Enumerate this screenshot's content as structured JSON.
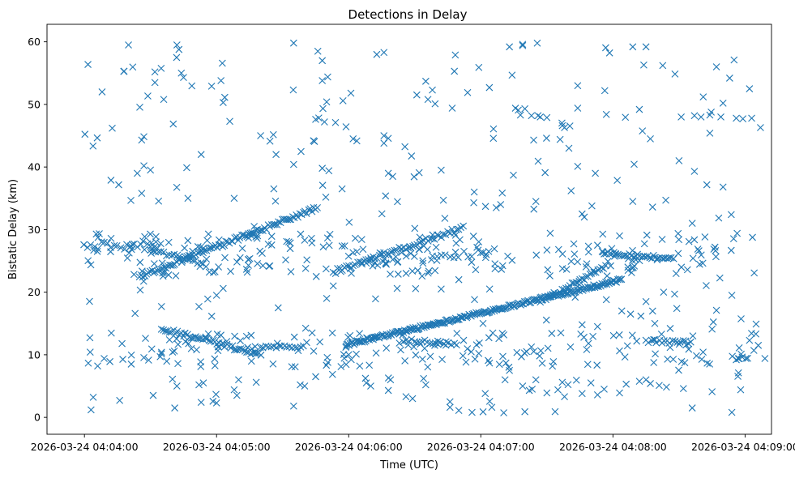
{
  "chart_data": {
    "type": "scatter",
    "title": "Detections in Delay",
    "xlabel": "Time (UTC)",
    "ylabel": "Bistatic Delay (km)",
    "x_unit": "seconds after 2026-03-24 04:04:00",
    "xlim": [
      -17,
      312
    ],
    "ylim": [
      -2.7,
      62.8
    ],
    "xticks": [
      {
        "value": 0,
        "label": "2026-03-24 04:04:00"
      },
      {
        "value": 60,
        "label": "2026-03-24 04:05:00"
      },
      {
        "value": 120,
        "label": "2026-03-24 04:06:00"
      },
      {
        "value": 180,
        "label": "2026-03-24 04:07:00"
      },
      {
        "value": 240,
        "label": "2026-03-24 04:08:00"
      },
      {
        "value": 300,
        "label": "2026-03-24 04:09:00"
      }
    ],
    "yticks": [
      0,
      10,
      20,
      30,
      40,
      50,
      60
    ],
    "grid": false,
    "marker": "x",
    "color": "#1f77b4",
    "seed": 12345,
    "tracks": [
      {
        "name": "ascending-track-low",
        "start": [
          119,
          11.6
        ],
        "end": [
          244,
          22.0
        ],
        "step": 0.55,
        "jitter": 0.25
      },
      {
        "name": "ascending-track-mid-a",
        "start": [
          25,
          22.5
        ],
        "end": [
          106,
          33.5
        ],
        "step": 0.8,
        "jitter": 0.35
      },
      {
        "name": "ascending-track-mid-b",
        "start": [
          113,
          23.2
        ],
        "end": [
          172,
          30.3
        ],
        "step": 1.0,
        "jitter": 0.35
      },
      {
        "name": "descending-track-mid",
        "start": [
          30,
          26.5
        ],
        "end": [
          55,
          24.5
        ],
        "step": 1.2,
        "jitter": 0.4
      },
      {
        "name": "descending-track-low",
        "start": [
          35,
          14.2
        ],
        "end": [
          80,
          10.0
        ],
        "step": 0.9,
        "jitter": 0.3
      },
      {
        "name": "flat-track-low-a",
        "start": [
          80,
          11.3
        ],
        "end": [
          100,
          11.3
        ],
        "step": 1.2,
        "jitter": 0.2
      },
      {
        "name": "flat-track-low-b",
        "start": [
          145,
          12.3
        ],
        "end": [
          170,
          11.8
        ],
        "step": 1.2,
        "jitter": 0.3
      },
      {
        "name": "flat-track-mid-a",
        "start": [
          120,
          25.5
        ],
        "end": [
          180,
          26.2
        ],
        "step": 2.0,
        "jitter": 1.0
      },
      {
        "name": "flat-track-mid-b",
        "start": [
          235,
          26.4
        ],
        "end": [
          268,
          25.3
        ],
        "step": 0.9,
        "jitter": 0.3
      },
      {
        "name": "flat-track-mid-c",
        "start": [
          0,
          27.5
        ],
        "end": [
          35,
          27.3
        ],
        "step": 1.5,
        "jitter": 0.6
      },
      {
        "name": "flat-track-low-c",
        "start": [
          255,
          12.2
        ],
        "end": [
          276,
          12.0
        ],
        "step": 1.2,
        "jitter": 0.25
      },
      {
        "name": "ascending-track-right",
        "start": [
          207,
          18.5
        ],
        "end": [
          237,
          24.2
        ],
        "step": 0.9,
        "jitter": 0.3
      }
    ],
    "clusters": [
      {
        "name": "band-low",
        "count": 170,
        "xrange": [
          0,
          305
        ],
        "yrange": [
          8,
          13.5
        ]
      },
      {
        "name": "band-mid",
        "count": 200,
        "xrange": [
          0,
          305
        ],
        "yrange": [
          22.5,
          29.5
        ]
      },
      {
        "name": "background",
        "count": 145,
        "xrange": [
          0,
          305
        ],
        "yrange": [
          0.5,
          60
        ]
      }
    ],
    "points": [
      [
        8,
        52.0
      ],
      [
        20,
        59.5
      ],
      [
        18,
        55.3
      ],
      [
        32,
        55.2
      ],
      [
        32,
        53.5
      ],
      [
        36,
        50.8
      ],
      [
        42,
        59.5
      ],
      [
        44,
        55.0
      ],
      [
        45,
        54.3
      ],
      [
        62,
        53.8
      ],
      [
        63,
        50.3
      ],
      [
        66,
        47.3
      ],
      [
        80,
        45.0
      ],
      [
        95,
        59.8
      ],
      [
        106,
        58.5
      ],
      [
        108,
        57.0
      ],
      [
        108,
        53.8
      ],
      [
        110,
        50.4
      ],
      [
        105,
        47.6
      ],
      [
        109,
        47.2
      ],
      [
        114,
        47.1
      ],
      [
        121,
        51.8
      ],
      [
        136,
        58.3
      ],
      [
        155,
        53.7
      ],
      [
        158,
        52.3
      ],
      [
        156,
        50.8
      ],
      [
        167,
        49.4
      ],
      [
        168,
        55.3
      ],
      [
        174,
        51.9
      ],
      [
        193,
        59.2
      ],
      [
        199,
        59.4
      ],
      [
        199,
        59.6
      ],
      [
        197,
        49.1
      ],
      [
        200,
        49.3
      ],
      [
        224,
        53.0
      ],
      [
        224,
        49.4
      ],
      [
        237,
        48.4
      ],
      [
        249,
        59.2
      ],
      [
        255,
        59.2
      ],
      [
        254,
        56.3
      ],
      [
        252,
        49.2
      ],
      [
        271,
        48.0
      ],
      [
        277,
        48.2
      ],
      [
        281,
        51.2
      ],
      [
        280,
        48.0
      ],
      [
        287,
        56.0
      ],
      [
        289,
        48.0
      ],
      [
        293,
        54.2
      ],
      [
        295,
        57.1
      ],
      [
        296,
        47.8
      ],
      [
        299,
        47.7
      ],
      [
        302,
        52.5
      ],
      [
        303,
        47.8
      ],
      [
        307,
        46.3
      ],
      [
        290,
        50.2
      ],
      [
        284,
        48.3
      ],
      [
        206,
        48.2
      ],
      [
        207,
        48.0
      ],
      [
        210,
        47.9
      ],
      [
        198,
        48.3
      ],
      [
        203,
        48.2
      ],
      [
        26,
        44.3
      ],
      [
        27,
        40.2
      ],
      [
        26,
        35.8
      ],
      [
        24,
        39.0
      ],
      [
        53,
        42.0
      ],
      [
        47,
        35.0
      ],
      [
        68,
        35.0
      ],
      [
        86,
        36.5
      ],
      [
        87,
        42.0
      ],
      [
        95,
        40.4
      ],
      [
        111,
        39.4
      ],
      [
        108,
        39.8
      ],
      [
        104,
        44.2
      ],
      [
        117,
        36.5
      ],
      [
        122,
        44.5
      ],
      [
        136,
        45.0
      ],
      [
        136,
        43.8
      ],
      [
        138,
        39.0
      ],
      [
        140,
        38.5
      ],
      [
        152,
        39.1
      ],
      [
        162,
        39.5
      ],
      [
        177,
        36.0
      ],
      [
        204,
        44.3
      ],
      [
        216,
        44.4
      ],
      [
        217,
        46.6
      ],
      [
        218,
        46.3
      ],
      [
        220,
        43.0
      ],
      [
        221,
        36.2
      ],
      [
        224,
        40.1
      ],
      [
        232,
        39.0
      ],
      [
        257,
        44.5
      ],
      [
        270,
        41.0
      ],
      [
        277,
        39.3
      ],
      [
        284,
        45.4
      ],
      [
        290,
        36.8
      ],
      [
        258,
        33.6
      ],
      [
        249,
        34.5
      ],
      [
        243,
        29.0
      ],
      [
        226,
        32.5
      ],
      [
        227,
        32.0
      ],
      [
        205,
        34.5
      ],
      [
        187,
        33.5
      ],
      [
        189,
        34.0
      ],
      [
        264,
        34.7
      ],
      [
        276,
        31.0
      ],
      [
        163,
        34.7
      ],
      [
        150,
        30.2
      ],
      [
        100,
        28.3
      ],
      [
        110,
        19.0
      ],
      [
        60,
        19.5
      ],
      [
        56,
        18.9
      ],
      [
        52,
        17.7
      ],
      [
        23,
        16.6
      ],
      [
        35,
        17.7
      ],
      [
        63,
        20.6
      ],
      [
        88,
        17.5
      ],
      [
        113,
        21.0
      ],
      [
        142,
        20.6
      ],
      [
        162,
        20.5
      ],
      [
        170,
        22.0
      ],
      [
        184,
        20.5
      ],
      [
        181,
        15.0
      ],
      [
        226,
        14.8
      ],
      [
        233,
        14.5
      ],
      [
        237,
        18.8
      ],
      [
        244,
        17.0
      ],
      [
        248,
        16.5
      ],
      [
        255,
        18.5
      ],
      [
        263,
        20.0
      ],
      [
        268,
        19.7
      ],
      [
        269,
        17.4
      ],
      [
        259,
        15.0
      ],
      [
        266,
        14.2
      ],
      [
        285,
        14.1
      ],
      [
        287,
        17.1
      ],
      [
        294,
        19.5
      ],
      [
        305,
        14.9
      ],
      [
        297,
        7.1
      ],
      [
        296,
        9.2
      ],
      [
        304,
        10.7
      ],
      [
        309,
        9.4
      ],
      [
        302,
        12.3
      ],
      [
        306,
        11.5
      ],
      [
        298,
        4.4
      ],
      [
        294,
        0.8
      ],
      [
        285,
        4.1
      ],
      [
        276,
        1.5
      ],
      [
        272,
        4.6
      ],
      [
        261,
        5.1
      ],
      [
        255,
        6.0
      ],
      [
        257,
        5.4
      ],
      [
        246,
        5.3
      ],
      [
        243,
        3.9
      ],
      [
        236,
        4.5
      ],
      [
        233,
        3.6
      ],
      [
        230,
        5.5
      ],
      [
        226,
        3.8
      ],
      [
        218,
        3.3
      ],
      [
        217,
        5.6
      ],
      [
        215,
        4.4
      ],
      [
        210,
        3.9
      ],
      [
        205,
        6.0
      ],
      [
        200,
        0.9
      ],
      [
        199,
        5.0
      ],
      [
        202,
        4.3
      ],
      [
        193,
        7.5
      ],
      [
        191,
        6.0
      ],
      [
        185,
        1.6
      ],
      [
        182,
        3.8
      ],
      [
        176,
        0.8
      ],
      [
        170,
        1.1
      ],
      [
        166,
        2.5
      ],
      [
        166,
        1.6
      ],
      [
        155,
        5.2
      ],
      [
        154,
        6.2
      ],
      [
        146,
        3.3
      ],
      [
        149,
        3.0
      ],
      [
        138,
        4.3
      ],
      [
        139,
        6.0
      ],
      [
        130,
        5.0
      ],
      [
        128,
        5.5
      ],
      [
        125,
        8.2
      ],
      [
        120,
        10.0
      ],
      [
        105,
        6.5
      ],
      [
        100,
        5.0
      ],
      [
        98,
        5.2
      ],
      [
        95,
        1.8
      ],
      [
        78,
        5.6
      ],
      [
        68,
        4.4
      ],
      [
        70,
        6.0
      ],
      [
        60,
        2.3
      ],
      [
        54,
        5.5
      ],
      [
        52,
        5.2
      ],
      [
        53,
        2.4
      ],
      [
        40,
        6.1
      ],
      [
        42,
        5.0
      ],
      [
        41,
        1.5
      ],
      [
        35,
        10.4
      ],
      [
        16,
        2.7
      ],
      [
        3,
        1.2
      ],
      [
        4,
        3.2
      ],
      [
        6,
        8.2
      ]
    ]
  }
}
